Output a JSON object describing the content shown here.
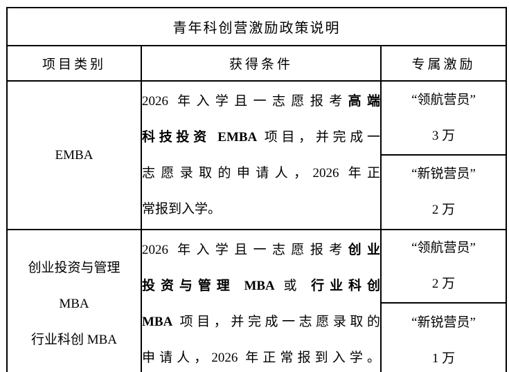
{
  "table": {
    "title": "青年科创营激励政策说明",
    "headers": [
      "项目类别",
      "获得条件",
      "专属激励"
    ],
    "rows": [
      {
        "category_lines": [
          "EMBA"
        ],
        "condition_lines": [
          {
            "justify": true,
            "segments": [
              {
                "t": "2026 年入学且一志愿报考",
                "b": false
              },
              {
                "t": "高端",
                "b": true
              }
            ]
          },
          {
            "justify": true,
            "segments": [
              {
                "t": "科技投资 EMBA",
                "b": true
              },
              {
                "t": " 项目，并完成一",
                "b": false
              }
            ]
          },
          {
            "justify": true,
            "segments": [
              {
                "t": "志愿录取的申请人，2026 年正",
                "b": false
              }
            ]
          },
          {
            "justify": false,
            "segments": [
              {
                "t": "常报到入学。",
                "b": false
              }
            ]
          }
        ],
        "incentives": [
          {
            "name": "“领航营员”",
            "amount": "3 万"
          },
          {
            "name": "“新锐营员”",
            "amount": "2 万"
          }
        ]
      },
      {
        "category_lines": [
          "创业投资与管理",
          "MBA",
          "行业科创 MBA"
        ],
        "condition_lines": [
          {
            "justify": true,
            "segments": [
              {
                "t": "2026 年入学且一志愿报考",
                "b": false
              },
              {
                "t": "创业",
                "b": true
              }
            ]
          },
          {
            "justify": true,
            "segments": [
              {
                "t": "投资与管理 MBA",
                "b": true
              },
              {
                "t": " 或 ",
                "b": false
              },
              {
                "t": "行业科创",
                "b": true
              }
            ]
          },
          {
            "justify": true,
            "segments": [
              {
                "t": "MBA",
                "b": true
              },
              {
                "t": " 项目，并完成一志愿录取的",
                "b": false
              }
            ]
          },
          {
            "justify": true,
            "segments": [
              {
                "t": "申请人，2026 年正常报到入学。",
                "b": false
              }
            ]
          }
        ],
        "incentives": [
          {
            "name": "“领航营员”",
            "amount": "2 万"
          },
          {
            "name": "“新锐营员”",
            "amount": "1 万"
          }
        ]
      }
    ]
  }
}
